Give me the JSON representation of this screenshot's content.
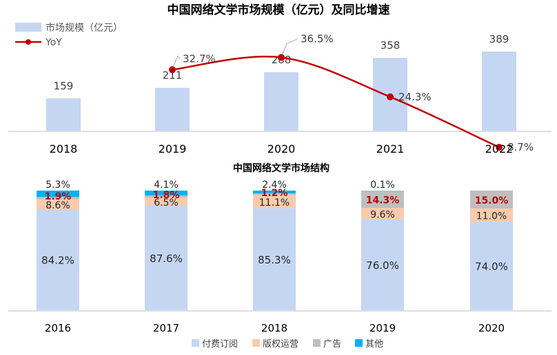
{
  "chart_data": [
    {
      "type": "bar",
      "title": "中国网络文学市场规模（亿元）及同比增速",
      "categories": [
        "2018",
        "2019",
        "2020",
        "2021",
        "2022"
      ],
      "series": [
        {
          "name": "市场规模（亿元）",
          "type": "bar",
          "values": [
            159,
            211,
            288,
            358,
            389
          ],
          "color": "#c5d6f2"
        },
        {
          "name": "YoY",
          "type": "line",
          "values": [
            null,
            32.7,
            36.5,
            24.3,
            8.7
          ],
          "labels": [
            "",
            "32.7%",
            "36.5%",
            "24.3%",
            "8.7%"
          ],
          "color": "#c00000"
        }
      ],
      "value_labels": [
        "159",
        "211",
        "288",
        "358",
        "389"
      ],
      "legend_position": "top-left"
    },
    {
      "type": "bar",
      "stacked": true,
      "title": "中国网络文学市场结构",
      "categories": [
        "2016",
        "2017",
        "2018",
        "2019",
        "2020"
      ],
      "series": [
        {
          "name": "付费订阅",
          "values": [
            84.2,
            87.6,
            85.3,
            76.0,
            74.0
          ],
          "labels": [
            "84.2%",
            "87.6%",
            "85.3%",
            "76.0%",
            "74.0%"
          ],
          "color": "#c5d6f2"
        },
        {
          "name": "版权运营",
          "values": [
            8.6,
            6.5,
            11.1,
            9.6,
            11.0
          ],
          "labels": [
            "8.6%",
            "6.5%",
            "11.1%",
            "9.6%",
            "11.0%"
          ],
          "color": "#f8cbad"
        },
        {
          "name": "广告",
          "values": [
            1.9,
            1.8,
            1.2,
            14.3,
            15.0
          ],
          "labels": [
            "1.9%",
            "1.8%",
            "1.2%",
            "14.3%",
            "15.0%"
          ],
          "color": "#bfbfbf"
        },
        {
          "name": "其他",
          "values": [
            5.3,
            4.1,
            2.4,
            0.1,
            0.0
          ],
          "labels": [
            "5.3%",
            "4.1%",
            "2.4%",
            "0.1%",
            ""
          ],
          "color": "#00b0f0"
        }
      ],
      "ylim": [
        0,
        100
      ],
      "legend_position": "bottom"
    }
  ]
}
